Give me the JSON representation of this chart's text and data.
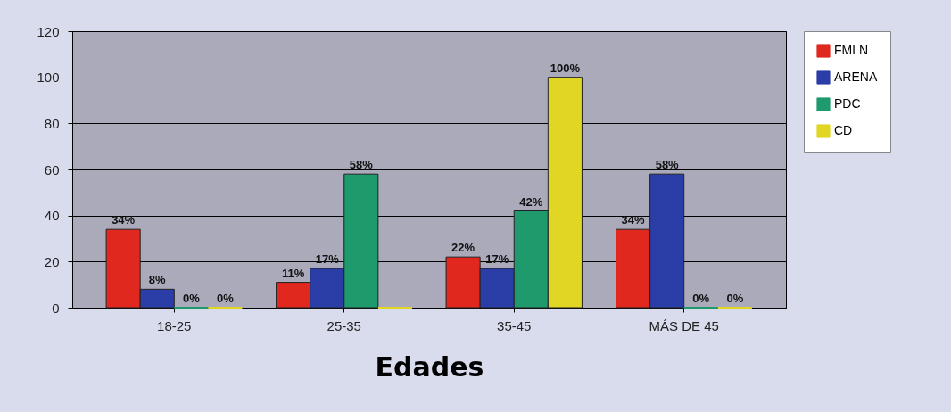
{
  "chart_data": {
    "type": "bar",
    "xlabel": "Edades",
    "categories": [
      "18-25",
      "25-35",
      "35-45",
      "MÁS DE 45"
    ],
    "series": [
      {
        "name": "FMLN",
        "color": "#e0281e",
        "values": [
          34,
          11,
          22,
          34
        ],
        "value_labels": [
          "34%",
          "11%",
          "22%",
          "34%"
        ]
      },
      {
        "name": "ARENA",
        "color": "#2b3da6",
        "values": [
          8,
          17,
          17,
          58
        ],
        "value_labels": [
          "8%",
          "17%",
          "17%",
          "58%"
        ]
      },
      {
        "name": "PDC",
        "color": "#1e9a6c",
        "values": [
          0,
          58,
          42,
          0
        ],
        "value_labels": [
          "0%",
          "58%",
          "42%",
          "0%"
        ]
      },
      {
        "name": "CD",
        "color": "#e2d625",
        "values": [
          0,
          0,
          100,
          0
        ],
        "value_labels": [
          "0%",
          null,
          "100%",
          "0%"
        ]
      }
    ],
    "ylim": [
      0,
      120
    ],
    "yticks": [
      0,
      20,
      40,
      60,
      80,
      100,
      120
    ],
    "grid": "y",
    "legend": "right"
  }
}
